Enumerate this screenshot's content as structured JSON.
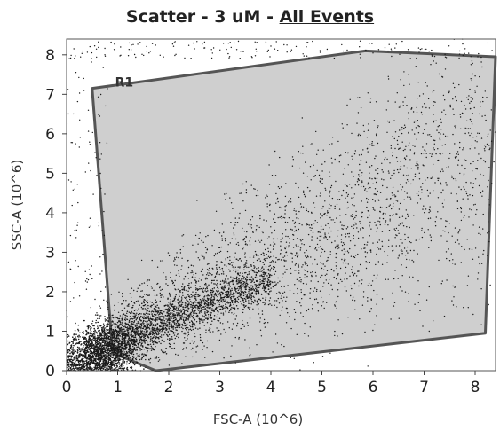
{
  "chart_data": {
    "type": "scatter",
    "title": {
      "prefix": "Scatter - 3 uM - ",
      "population_link": "All Events"
    },
    "xlabel": "FSC-A (10^6)",
    "ylabel": "SSC-A (10^6)",
    "xlim": [
      0,
      8.4
    ],
    "ylim": [
      0,
      8.4
    ],
    "xticks": [
      0,
      1,
      2,
      3,
      4,
      5,
      6,
      7,
      8
    ],
    "yticks": [
      0,
      1,
      2,
      3,
      4,
      5,
      6,
      7,
      8
    ],
    "grid": false,
    "gate": {
      "name": "R1",
      "fill_color": "#cfcfcf",
      "edge_color": "#555555",
      "vertices": [
        [
          0.5,
          7.15
        ],
        [
          5.85,
          8.1
        ],
        [
          8.4,
          7.95
        ],
        [
          8.2,
          0.95
        ],
        [
          1.75,
          0.0
        ],
        [
          0.9,
          0.45
        ]
      ]
    },
    "point_color": "#1a1a1a",
    "distribution": {
      "description_points_approx": 6500,
      "main_trend": [
        [
          0.6,
          0.3
        ],
        [
          2.0,
          1.1
        ],
        [
          3.5,
          2.0
        ],
        [
          5.0,
          3.2
        ],
        [
          6.5,
          4.5
        ],
        [
          8.2,
          6.0
        ]
      ],
      "core_cluster_center": [
        0.7,
        0.5
      ]
    }
  }
}
